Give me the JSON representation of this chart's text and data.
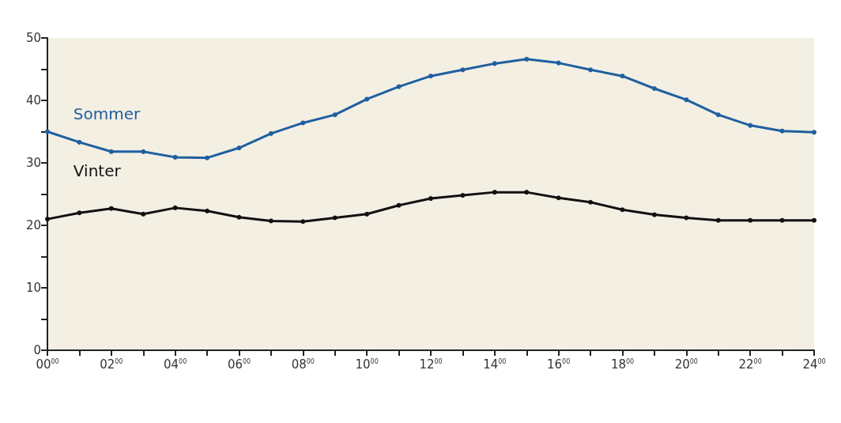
{
  "chart_data": {
    "type": "line",
    "categories": [
      "00$^{00}$",
      null,
      "02$^{00}$",
      null,
      "04$^{00}$",
      null,
      "06$^{00}$",
      null,
      "08$^{00}$",
      null,
      "10$^{00}$",
      null,
      "12$^{00}$",
      null,
      "14$^{00}$",
      null,
      "16$^{00}$",
      null,
      "18$^{00}$",
      null,
      "20$^{00}$",
      null,
      "22$^{00}$",
      null,
      "24$^{00}$"
    ],
    "series": [
      {
        "name": "Sommer",
        "color": "#1f5fa0",
        "values": [
          35,
          33.3,
          31.8,
          31.8,
          30.9,
          30.8,
          32.4,
          34.7,
          36.4,
          37.7,
          40.2,
          42.2,
          43.9,
          44.9,
          45.9,
          46.6,
          46,
          44.9,
          43.9,
          41.9,
          40.1,
          37.7,
          36,
          35.1,
          34.9
        ]
      },
      {
        "name": "Vinter",
        "color": "#111111",
        "values": [
          21,
          22,
          22.7,
          21.8,
          22.8,
          22.3,
          21.3,
          20.7,
          20.6,
          21.2,
          21.8,
          23.2,
          24.3,
          24.8,
          25.3,
          25.3,
          24.4,
          23.7,
          22.5,
          21.7,
          21.2,
          20.8,
          20.8,
          20.8,
          20.8
        ]
      }
    ],
    "ylim": [
      0,
      50
    ],
    "yticks": [
      0,
      {
        "value": 5,
        "label": null
      },
      10,
      {
        "value": 15,
        "label": null
      },
      20,
      {
        "value": 25,
        "label": null
      },
      30,
      {
        "value": 35,
        "label": null
      },
      40,
      {
        "value": 45,
        "label": null
      },
      50
    ],
    "grid": false,
    "legend": false,
    "marker": "circle",
    "line_style": "solid"
  }
}
